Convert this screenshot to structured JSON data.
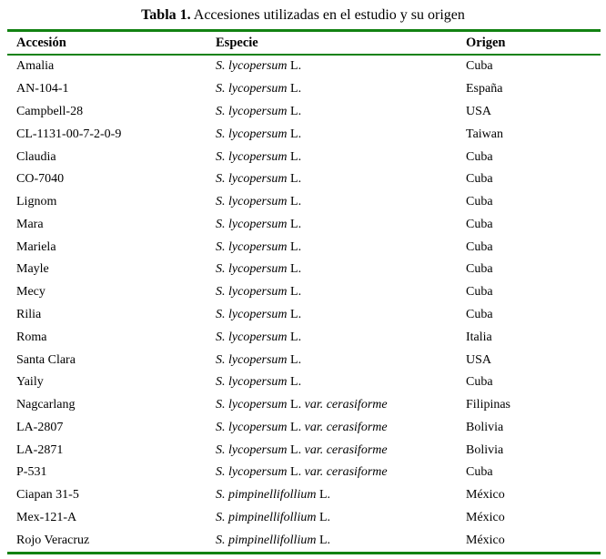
{
  "accent_color": "#128212",
  "title": {
    "label_bold": "Tabla 1.",
    "label_rest": " Accesiones utilizadas en el estudio y su origen"
  },
  "table": {
    "headers": [
      "Accesión",
      "Especie",
      "Origen"
    ],
    "rows": [
      {
        "accession": "Amalia",
        "species": [
          {
            "text": "S. lycopersum",
            "italic": true
          },
          {
            "text": " L.",
            "italic": false
          }
        ],
        "origin": "Cuba"
      },
      {
        "accession": "AN-104-1",
        "species": [
          {
            "text": "S. lycopersum",
            "italic": true
          },
          {
            "text": " L.",
            "italic": false
          }
        ],
        "origin": "España"
      },
      {
        "accession": "Campbell-28",
        "species": [
          {
            "text": "S. lycopersum",
            "italic": true
          },
          {
            "text": " L.",
            "italic": false
          }
        ],
        "origin": "USA"
      },
      {
        "accession": "CL-1131-00-7-2-0-9",
        "species": [
          {
            "text": "S. lycopersum",
            "italic": true
          },
          {
            "text": " L.",
            "italic": false
          }
        ],
        "origin": "Taiwan"
      },
      {
        "accession": "Claudia",
        "species": [
          {
            "text": "S. lycopersum",
            "italic": true
          },
          {
            "text": " L.",
            "italic": false
          }
        ],
        "origin": "Cuba"
      },
      {
        "accession": "CO-7040",
        "species": [
          {
            "text": "S. lycopersum",
            "italic": true
          },
          {
            "text": " L.",
            "italic": false
          }
        ],
        "origin": "Cuba"
      },
      {
        "accession": "Lignom",
        "species": [
          {
            "text": "S. lycopersum",
            "italic": true
          },
          {
            "text": " L.",
            "italic": false
          }
        ],
        "origin": "Cuba"
      },
      {
        "accession": "Mara",
        "species": [
          {
            "text": "S. lycopersum",
            "italic": true
          },
          {
            "text": " L.",
            "italic": false
          }
        ],
        "origin": "Cuba"
      },
      {
        "accession": "Mariela",
        "species": [
          {
            "text": "S. lycopersum",
            "italic": true
          },
          {
            "text": " L.",
            "italic": false
          }
        ],
        "origin": "Cuba"
      },
      {
        "accession": "Mayle",
        "species": [
          {
            "text": "S. lycopersum",
            "italic": true
          },
          {
            "text": " L.",
            "italic": false
          }
        ],
        "origin": "Cuba"
      },
      {
        "accession": "Mecy",
        "species": [
          {
            "text": "S. lycopersum",
            "italic": true
          },
          {
            "text": " L.",
            "italic": false
          }
        ],
        "origin": "Cuba"
      },
      {
        "accession": "Rilia",
        "species": [
          {
            "text": "S. lycopersum",
            "italic": true
          },
          {
            "text": " L.",
            "italic": false
          }
        ],
        "origin": "Cuba"
      },
      {
        "accession": "Roma",
        "species": [
          {
            "text": "S. lycopersum",
            "italic": true
          },
          {
            "text": " L.",
            "italic": false
          }
        ],
        "origin": "Italia"
      },
      {
        "accession": "Santa Clara",
        "species": [
          {
            "text": "S. lycopersum",
            "italic": true
          },
          {
            "text": " L.",
            "italic": false
          }
        ],
        "origin": "USA"
      },
      {
        "accession": "Yaily",
        "species": [
          {
            "text": "S. lycopersum",
            "italic": true
          },
          {
            "text": " L.",
            "italic": false
          }
        ],
        "origin": "Cuba"
      },
      {
        "accession": "Nagcarlang",
        "species": [
          {
            "text": "S. lycopersum",
            "italic": true
          },
          {
            "text": " L. ",
            "italic": false
          },
          {
            "text": "var. cerasiforme",
            "italic": true
          }
        ],
        "origin": "Filipinas"
      },
      {
        "accession": "LA-2807",
        "species": [
          {
            "text": "S. lycopersum",
            "italic": true
          },
          {
            "text": " L. ",
            "italic": false
          },
          {
            "text": "var. cerasiforme",
            "italic": true
          }
        ],
        "origin": "Bolivia"
      },
      {
        "accession": "LA-2871",
        "species": [
          {
            "text": "S. lycopersum",
            "italic": true
          },
          {
            "text": " L. ",
            "italic": false
          },
          {
            "text": "var. cerasiforme",
            "italic": true
          }
        ],
        "origin": "Bolivia"
      },
      {
        "accession": "P-531",
        "species": [
          {
            "text": "S. lycopersum",
            "italic": true
          },
          {
            "text": " L. ",
            "italic": false
          },
          {
            "text": "var. cerasiforme",
            "italic": true
          }
        ],
        "origin": "Cuba"
      },
      {
        "accession": "Ciapan 31-5",
        "species": [
          {
            "text": "S. pimpinellifollium",
            "italic": true
          },
          {
            "text": " L.",
            "italic": false
          }
        ],
        "origin": "México"
      },
      {
        "accession": "Mex-121-A",
        "species": [
          {
            "text": "S. pimpinellifollium",
            "italic": true
          },
          {
            "text": " L.",
            "italic": false
          }
        ],
        "origin": "México"
      },
      {
        "accession": "Rojo Veracruz",
        "species": [
          {
            "text": "S. pimpinellifollium",
            "italic": true
          },
          {
            "text": " L.",
            "italic": false
          }
        ],
        "origin": "México"
      }
    ]
  }
}
